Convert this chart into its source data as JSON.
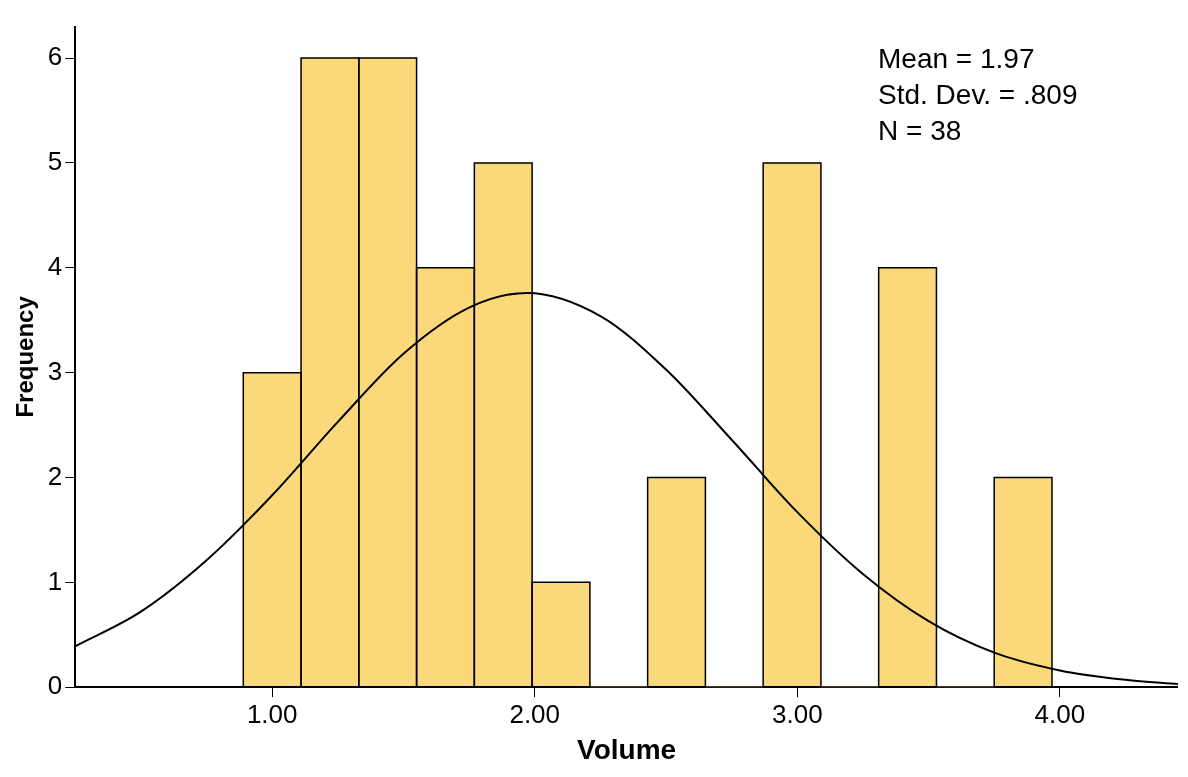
{
  "chart_data": {
    "type": "histogram",
    "xlabel": "Volume",
    "ylabel": "Frequency",
    "bins": [
      0.89,
      1.11,
      1.33,
      1.55,
      1.77,
      1.99,
      2.21,
      2.43,
      2.65,
      2.87,
      3.09,
      3.31,
      3.53,
      3.75,
      3.97
    ],
    "values": [
      3,
      6,
      6,
      4,
      5,
      1,
      0,
      2,
      0,
      5,
      0,
      4,
      0,
      2
    ],
    "color": "#fbd97b",
    "series": [
      {
        "type": "line",
        "color": "#000000",
        "x": [
          0.25,
          0.5,
          0.75,
          1.0,
          1.25,
          1.5,
          1.75,
          1.97,
          2.25,
          2.5,
          2.75,
          3.0,
          3.25,
          3.5,
          3.75,
          4.0,
          4.25,
          4.45
        ],
        "values": [
          0.39,
          0.72,
          1.21,
          1.83,
          2.53,
          3.18,
          3.62,
          3.76,
          3.54,
          3.03,
          2.36,
          1.67,
          1.08,
          0.63,
          0.33,
          0.16,
          0.07,
          0.03
        ]
      }
    ],
    "xlim": [
      0.25,
      4.45
    ],
    "xticks": [
      {
        "value": 1,
        "label": "1.00"
      },
      {
        "value": 2,
        "label": "2.00"
      },
      {
        "value": 3,
        "label": "3.00"
      },
      {
        "value": 4,
        "label": "4.00"
      }
    ],
    "ylim": [
      0,
      6.3
    ],
    "yticks": [
      0,
      1,
      2,
      3,
      4,
      5,
      6
    ],
    "grid": false,
    "legend": false,
    "marker": "none",
    "line_style": "solid",
    "annotations": [
      "Mean = 1.97",
      "Std. Dev. = .809",
      "N = 38"
    ]
  }
}
